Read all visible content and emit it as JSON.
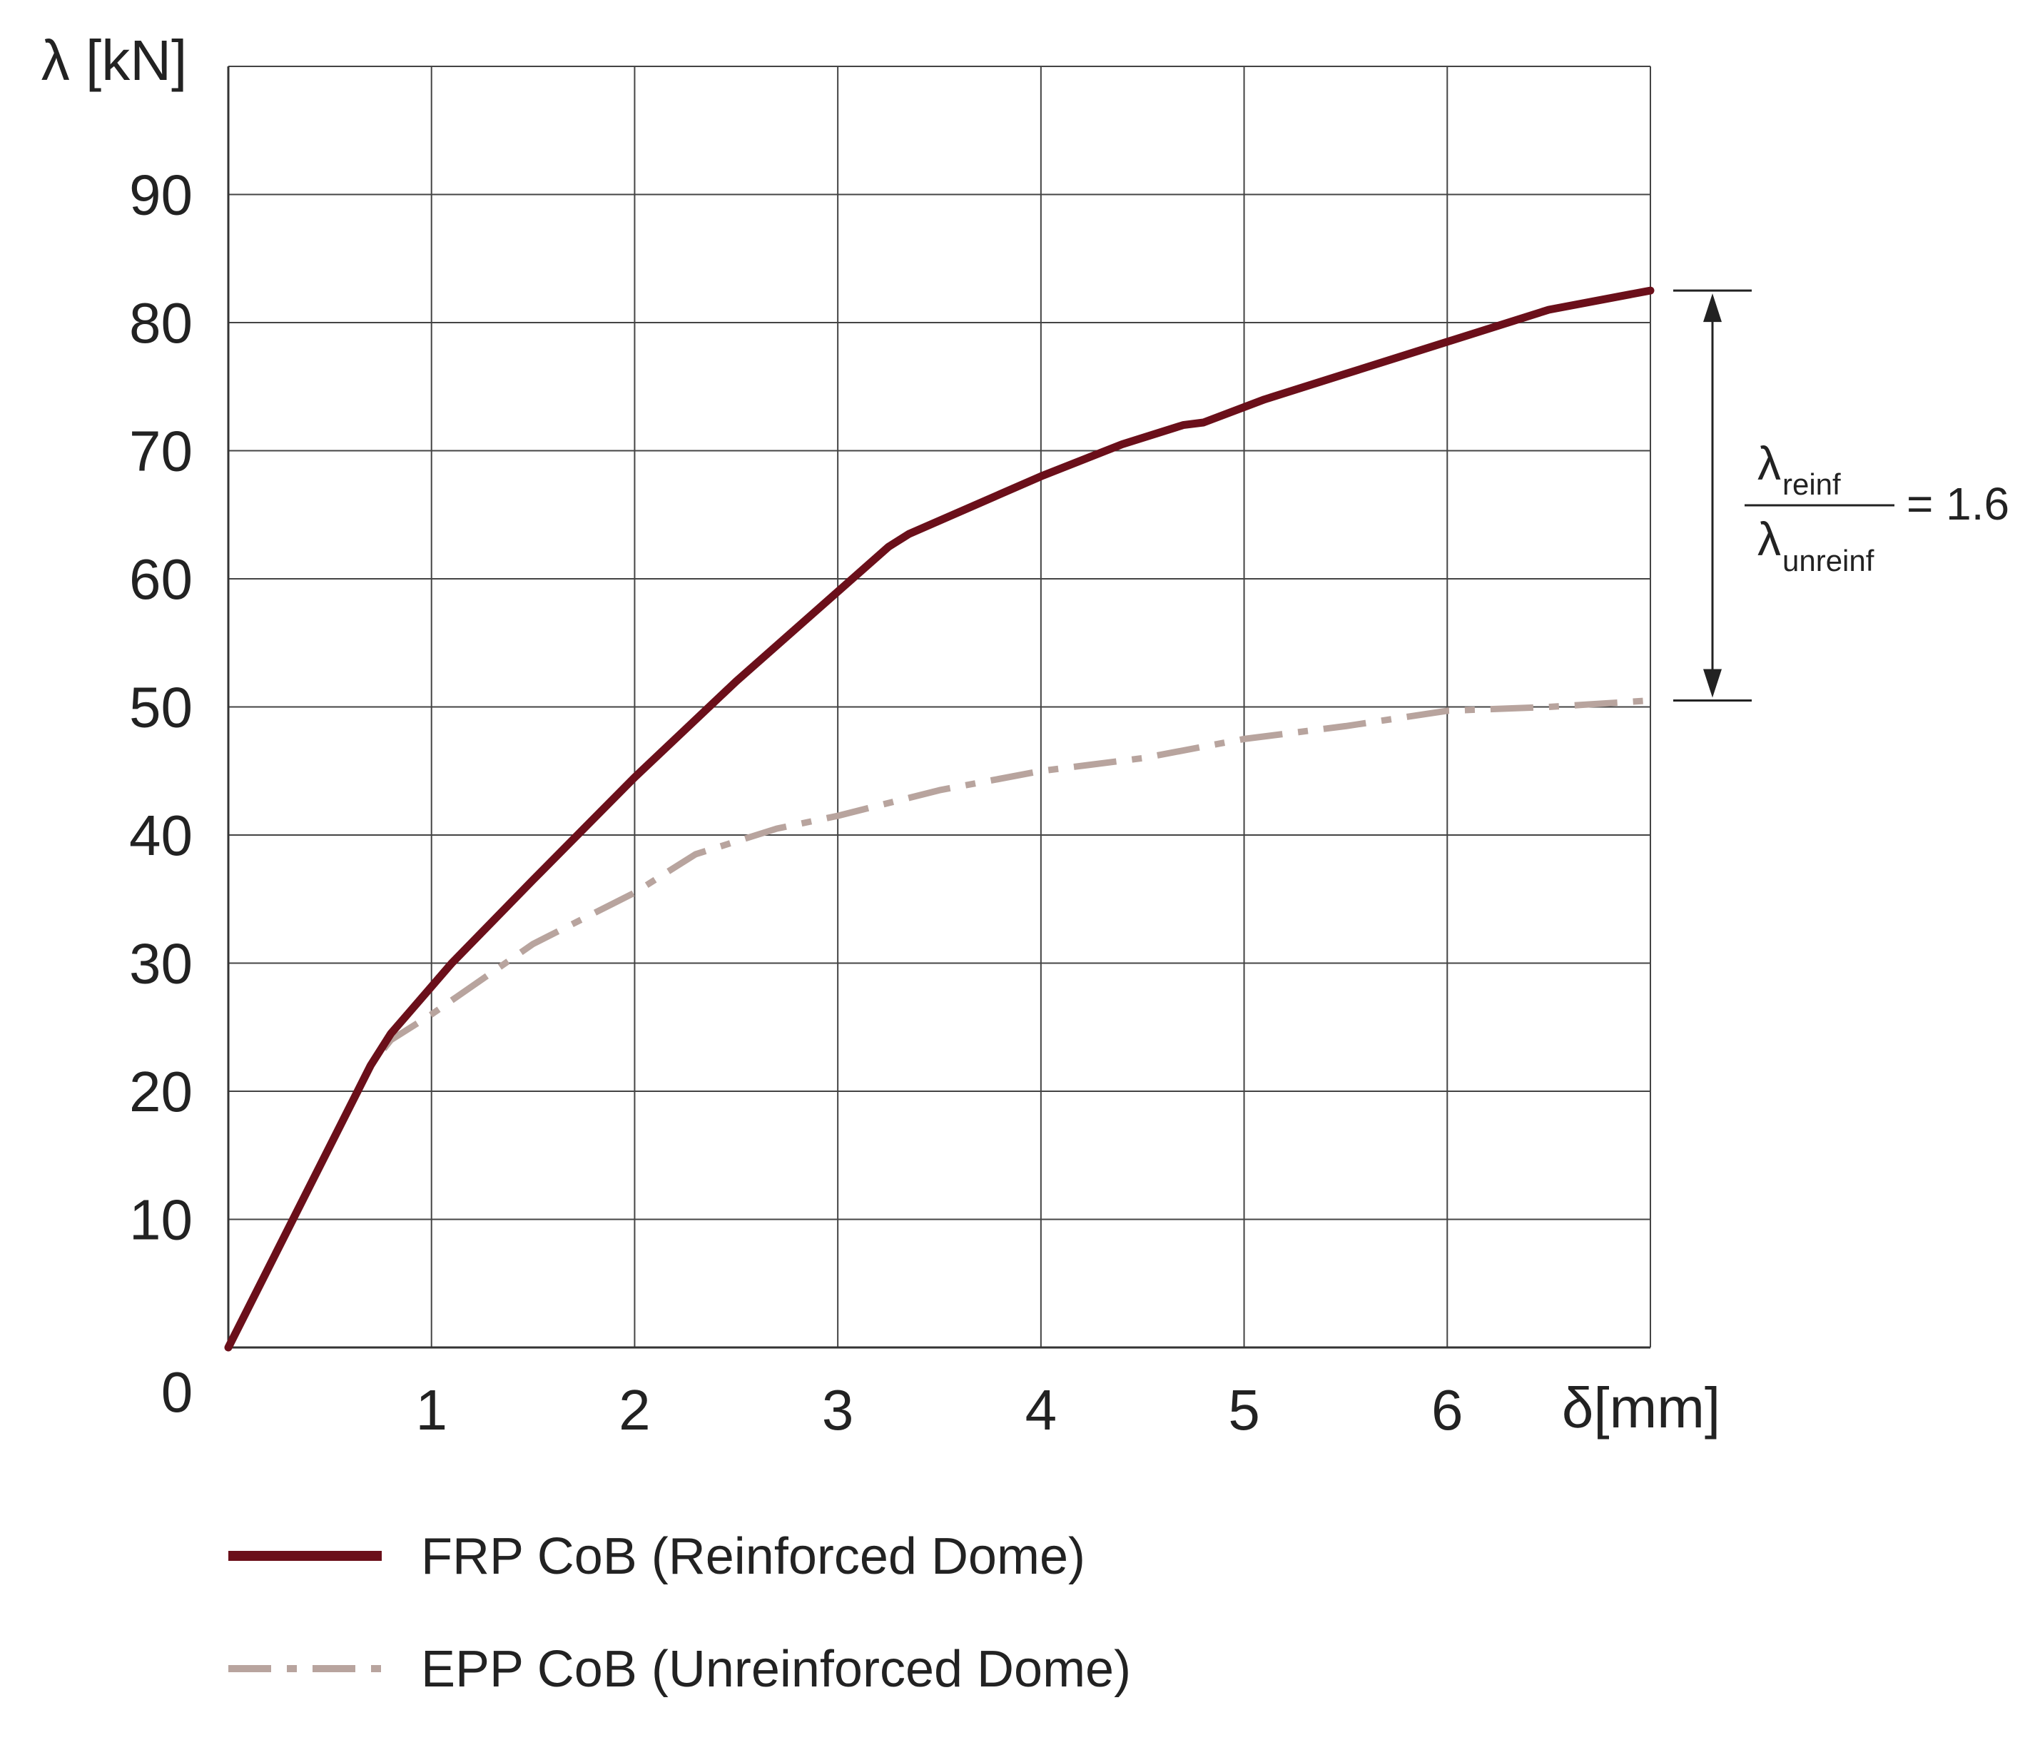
{
  "chart_data": {
    "type": "line",
    "ylabel": "λ [kN]",
    "xlabel": "δ[mm]",
    "xlim": [
      0,
      7
    ],
    "ylim": [
      0,
      100
    ],
    "x_ticks": [
      1,
      2,
      3,
      4,
      5,
      6
    ],
    "y_ticks": [
      10,
      20,
      30,
      40,
      50,
      60,
      70,
      80,
      90
    ],
    "origin_label": "0",
    "grid": true,
    "legend_position": "bottom-left",
    "series": [
      {
        "name": "FRP CoB (Reinforced Dome)",
        "color": "#6b0f1a",
        "style": "solid",
        "x": [
          0,
          0.7,
          0.8,
          1.1,
          1.5,
          2.0,
          2.5,
          3.0,
          3.25,
          3.35,
          4.0,
          4.4,
          4.7,
          4.8,
          5.1,
          5.5,
          6.0,
          6.5,
          7.0
        ],
        "y": [
          0,
          22,
          24.5,
          30,
          36.5,
          44.5,
          52,
          59,
          62.5,
          63.5,
          68,
          70.5,
          72,
          72.2,
          74,
          76,
          78.5,
          81,
          82.5
        ]
      },
      {
        "name": "EPP CoB (Unreinforced Dome)",
        "color": "#b8a49e",
        "style": "dashdot",
        "x": [
          0,
          0.7,
          0.8,
          1.0,
          1.5,
          2.0,
          2.3,
          2.7,
          3.0,
          3.5,
          4.0,
          4.5,
          5.0,
          5.5,
          6.0,
          6.5,
          7.0
        ],
        "y": [
          0,
          22,
          24,
          26,
          31.5,
          35.5,
          38.5,
          40.5,
          41.5,
          43.5,
          45,
          46,
          47.5,
          48.5,
          49.7,
          50,
          50.5
        ]
      }
    ],
    "annotation": {
      "numerator": "λ",
      "numerator_sub": "reinf",
      "denominator": "λ",
      "denominator_sub": "unreinf",
      "result": "= 1.6",
      "from_value": 50.5,
      "to_value": 82.5
    }
  }
}
